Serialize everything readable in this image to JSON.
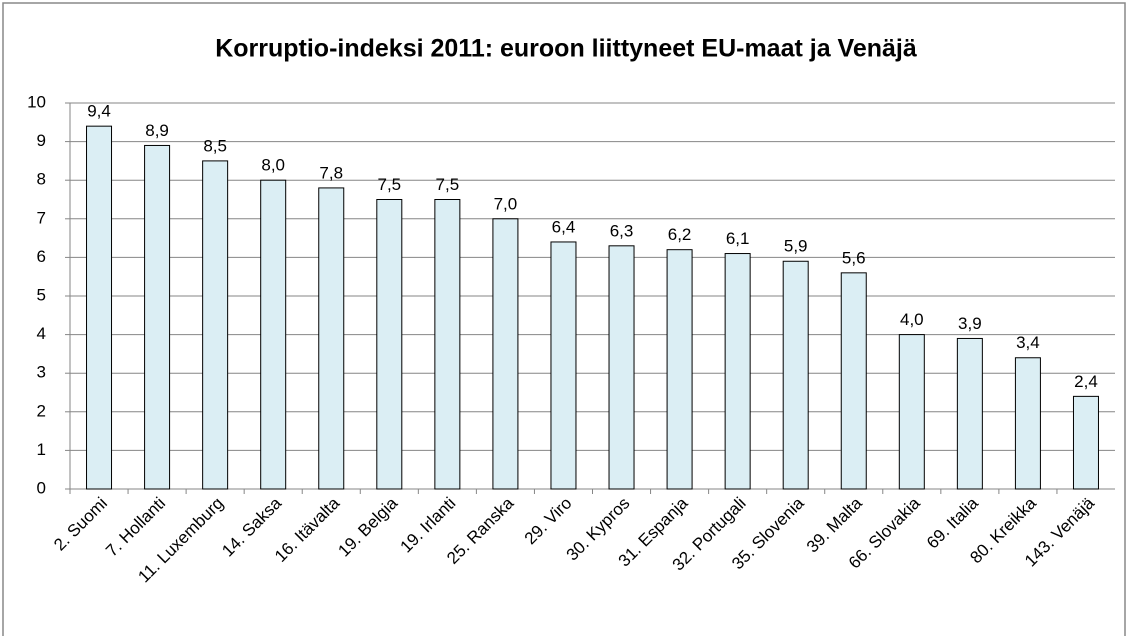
{
  "chart_data": {
    "type": "bar",
    "title": "Korruptio-indeksi 2011: euroon liittyneet EU-maat ja Venäjä",
    "categories": [
      "2. Suomi",
      "7. Hollanti",
      "11. Luxemburg",
      "14. Saksa",
      "16. Itävalta",
      "19. Belgia",
      "19. Irlanti",
      "25. Ranska",
      "29. Viro",
      "30. Kypros",
      "31. Espanja",
      "32. Portugali",
      "35. Slovenia",
      "39. Malta",
      "66. Slovakia",
      "69. Italia",
      "80. Kreikka",
      "143. Venäjä"
    ],
    "values": [
      9.4,
      8.9,
      8.5,
      8.0,
      7.8,
      7.5,
      7.5,
      7.0,
      6.4,
      6.3,
      6.2,
      6.1,
      5.9,
      5.6,
      4.0,
      3.9,
      3.4,
      2.4
    ],
    "value_labels": [
      "9,4",
      "8,9",
      "8,5",
      "8,0",
      "7,8",
      "7,5",
      "7,5",
      "7,0",
      "6,4",
      "6,3",
      "6,2",
      "6,1",
      "5,9",
      "5,6",
      "4,0",
      "3,9",
      "3,4",
      "2,4"
    ],
    "color": "#dbeef4",
    "ylim": [
      0,
      10
    ],
    "yticks": [
      0,
      1,
      2,
      3,
      4,
      5,
      6,
      7,
      8,
      9,
      10
    ],
    "grid": true
  }
}
